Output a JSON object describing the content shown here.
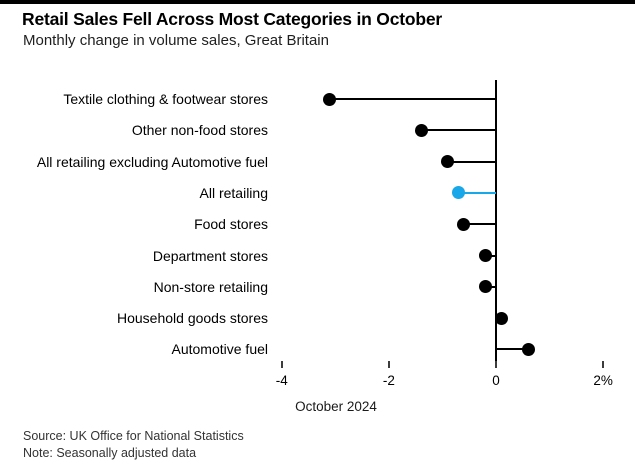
{
  "chart_data": {
    "type": "bar",
    "style": "horizontal-lollipop",
    "title": "Retail Sales Fell Across Most Categories in October",
    "subtitle": "Monthly change in volume sales, Great Britain",
    "xlabel": "October 2024",
    "ylabel": "",
    "categories": [
      "Textile clothing & footwear stores",
      "Other non-food stores",
      "All retailing excluding Automotive fuel",
      "All retailing",
      "Food stores",
      "Department stores",
      "Non-store retailing",
      "Household goods stores",
      "Automotive fuel"
    ],
    "values": [
      -3.1,
      -1.4,
      -0.9,
      -0.7,
      -0.6,
      -0.2,
      -0.2,
      0.1,
      0.6
    ],
    "unit": "%",
    "xlim": [
      -4,
      2
    ],
    "x_ticks": [
      {
        "value": -4,
        "label": "-4"
      },
      {
        "value": -2,
        "label": "-2"
      },
      {
        "value": 0,
        "label": "0"
      },
      {
        "value": 2,
        "label": "2%"
      }
    ],
    "grid": false,
    "legend": false,
    "highlight": {
      "index": 3,
      "category": "All retailing",
      "color": "#18a7e8"
    },
    "default_color": "#000000"
  },
  "footer": {
    "source": "Source: UK Office for National Statistics",
    "note": "Note: Seasonally adjusted data"
  },
  "accent_bar_color": "#000000"
}
